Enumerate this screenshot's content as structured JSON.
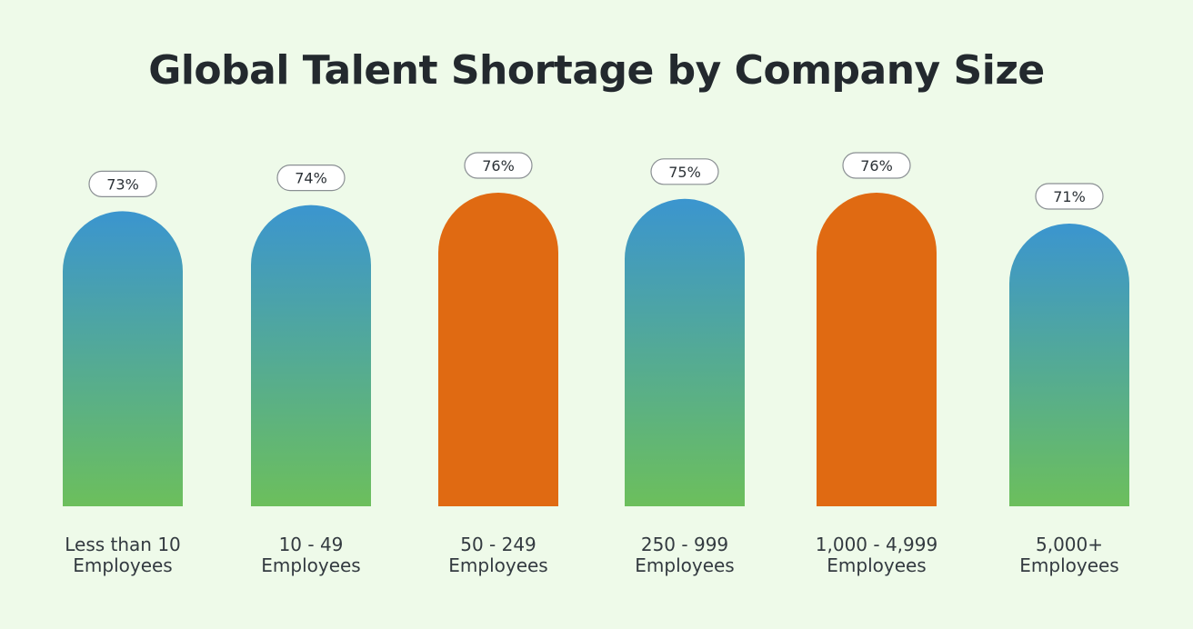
{
  "chart_data": {
    "type": "bar",
    "title": "Global Talent Shortage by Company Size",
    "xlabel": "",
    "ylabel": "",
    "categories": [
      [
        "Less than 10",
        "Employees"
      ],
      [
        "10 - 49",
        "Employees"
      ],
      [
        "50 - 249",
        "Employees"
      ],
      [
        "250 - 999",
        "Employees"
      ],
      [
        "1,000 - 4,999",
        "Employees"
      ],
      [
        "5,000+",
        "Employees"
      ]
    ],
    "values": [
      73,
      74,
      76,
      75,
      76,
      71
    ],
    "value_labels": [
      "73%",
      "74%",
      "76%",
      "75%",
      "76%",
      "71%"
    ],
    "highlighted": [
      false,
      false,
      true,
      false,
      true,
      false
    ],
    "colors": {
      "gradient_top": "#3b95cf",
      "gradient_bottom": "#6cbf5c",
      "highlight": "#e06a12",
      "pill_border": "#8a8f93",
      "pill_fill": "#ffffff",
      "label_text": "#333a40"
    },
    "grid": false,
    "legend": "none"
  }
}
